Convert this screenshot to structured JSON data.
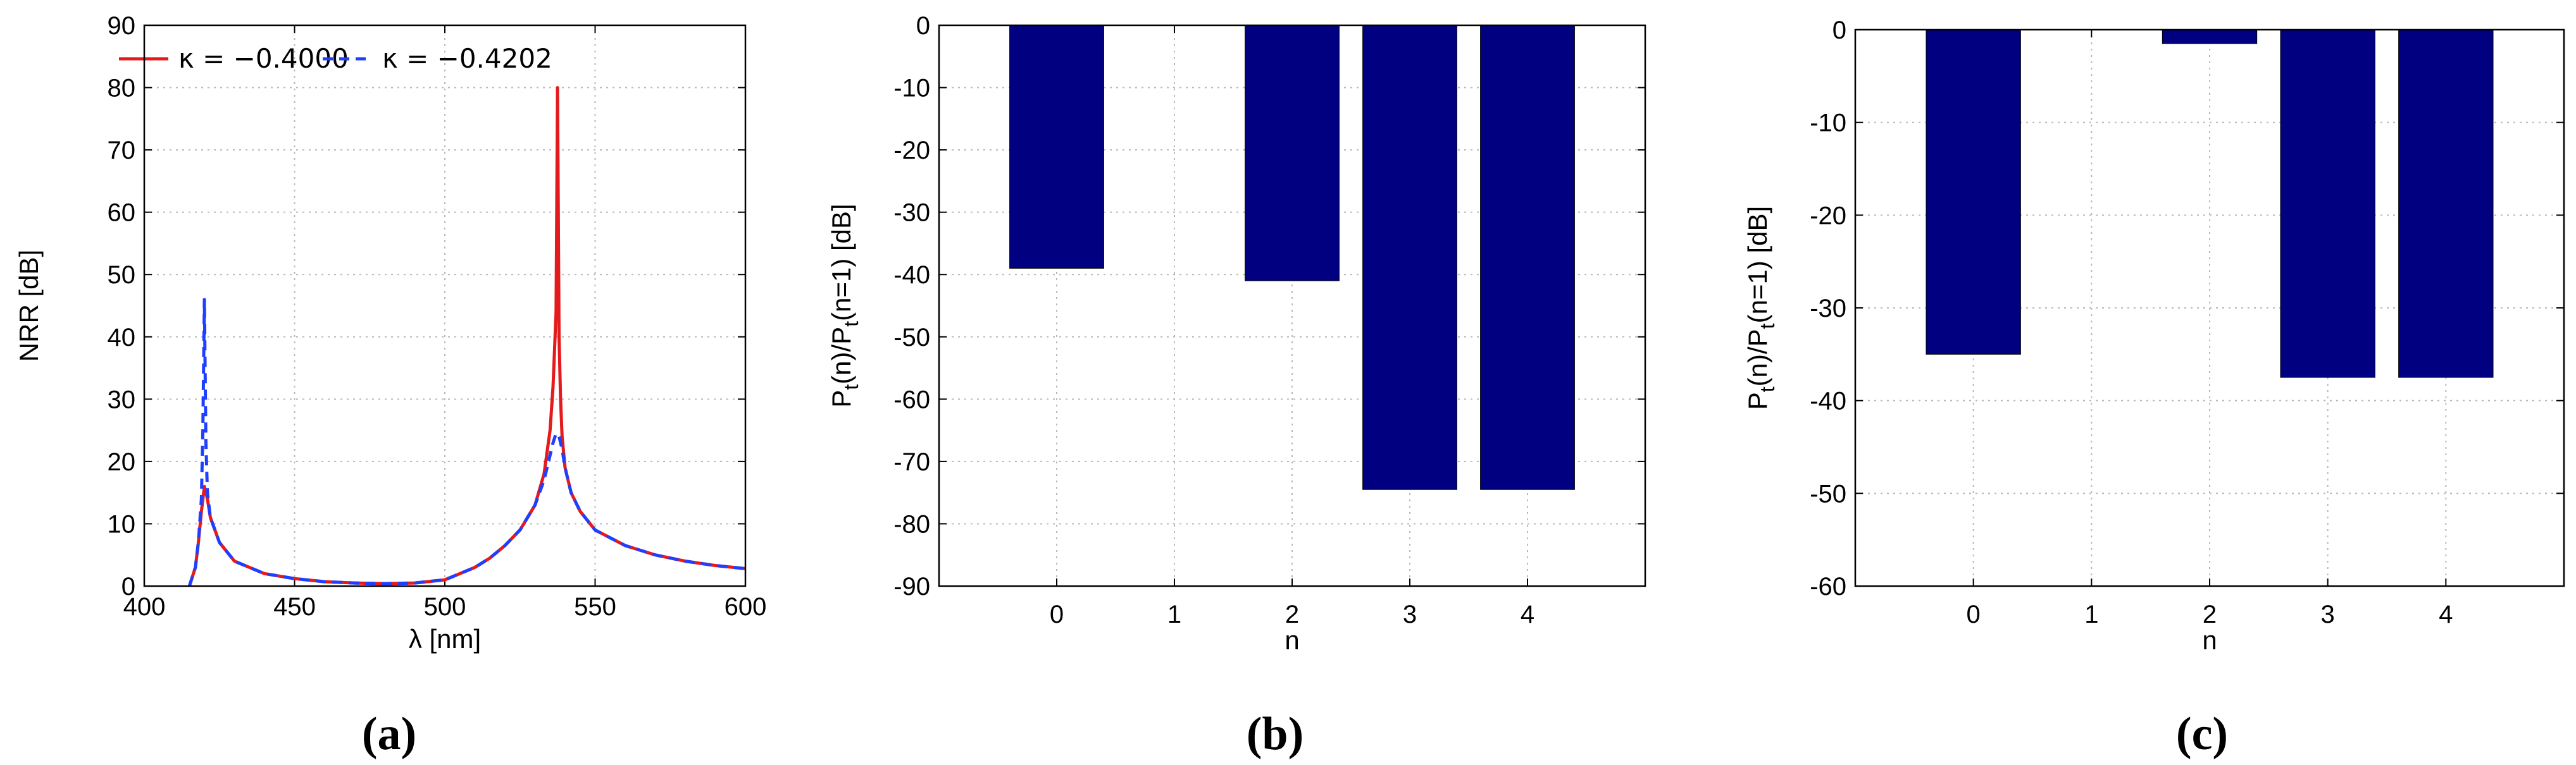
{
  "chart_data": [
    {
      "type": "line",
      "xlabel": "λ [nm]",
      "ylabel": "NRR [dB]",
      "xlim": [
        400,
        600
      ],
      "ylim": [
        0,
        90
      ],
      "xticks": [
        "400",
        "450",
        "500",
        "550",
        "600"
      ],
      "yticks": [
        "0",
        "10",
        "20",
        "30",
        "40",
        "50",
        "60",
        "70",
        "80",
        "90"
      ],
      "grid": true,
      "legend": "top-left",
      "caption": "(a)",
      "series": [
        {
          "name": "κ = −0.4000",
          "color": "#e41a1c",
          "style": "solid",
          "x": [
            415,
            417,
            418,
            419,
            420,
            421,
            422,
            425,
            430,
            440,
            450,
            460,
            470,
            480,
            490,
            500,
            505,
            510,
            515,
            520,
            525,
            530,
            533,
            535,
            536,
            537,
            537.5,
            538,
            538.5,
            539,
            540,
            542,
            545,
            550,
            560,
            570,
            580,
            590,
            600
          ],
          "y": [
            0,
            3,
            7,
            12,
            16,
            14,
            11,
            7,
            4,
            2,
            1.2,
            0.7,
            0.5,
            0.4,
            0.5,
            1,
            2,
            3,
            4.5,
            6.5,
            9,
            13,
            18,
            25,
            32,
            44,
            80,
            40,
            30,
            24,
            19,
            15,
            12,
            9,
            6.5,
            5,
            4,
            3.3,
            2.8
          ]
        },
        {
          "name": "κ = −0.4202",
          "color": "#1f3fff",
          "style": "dashed",
          "x": [
            415,
            417,
            418,
            419,
            419.5,
            420,
            420.5,
            421,
            422,
            425,
            430,
            440,
            450,
            460,
            470,
            480,
            490,
            500,
            505,
            510,
            515,
            520,
            525,
            530,
            533,
            535,
            536,
            537,
            538,
            539,
            540,
            542,
            545,
            550,
            560,
            570,
            580,
            590,
            600
          ],
          "y": [
            0,
            3,
            7,
            14,
            25,
            46,
            23,
            15,
            11,
            7,
            4,
            2,
            1.2,
            0.7,
            0.5,
            0.4,
            0.5,
            1,
            2,
            3,
            4.5,
            6.5,
            9,
            13,
            17,
            21,
            23,
            24.5,
            24,
            22,
            19,
            15,
            12,
            9,
            6.5,
            5,
            4,
            3.3,
            2.8
          ]
        }
      ]
    },
    {
      "type": "bar",
      "xlabel": "n",
      "ylabel": "P_t(n)/P_t(n=1) [dB]",
      "ylabel_parts": [
        "P",
        "t",
        "(n)/P",
        "t",
        "(n=1) [dB]"
      ],
      "categories": [
        "0",
        "1",
        "2",
        "3",
        "4"
      ],
      "values": [
        -39,
        0,
        -41,
        -74.5,
        -74.5
      ],
      "xlim": [
        -1,
        5
      ],
      "ylim": [
        -90,
        0
      ],
      "yticks": [
        "0",
        "-10",
        "-20",
        "-30",
        "-40",
        "-50",
        "-60",
        "-70",
        "-80",
        "-90"
      ],
      "bar_color": "#000080",
      "grid": true,
      "caption": "(b)"
    },
    {
      "type": "bar",
      "xlabel": "n",
      "ylabel": "P_t(n)/P_t(n=1) [dB]",
      "ylabel_parts": [
        "P",
        "t",
        "(n)/P",
        "t",
        "(n=1) [dB]"
      ],
      "categories": [
        "0",
        "1",
        "2",
        "3",
        "4"
      ],
      "values": [
        -35,
        0,
        -1.5,
        -37.5,
        -37.5
      ],
      "xlim": [
        -1,
        5
      ],
      "ylim": [
        -60,
        0
      ],
      "yticks": [
        "0",
        "-10",
        "-20",
        "-30",
        "-40",
        "-50",
        "-60"
      ],
      "bar_color": "#000080",
      "grid": true,
      "caption": "(c)"
    }
  ]
}
